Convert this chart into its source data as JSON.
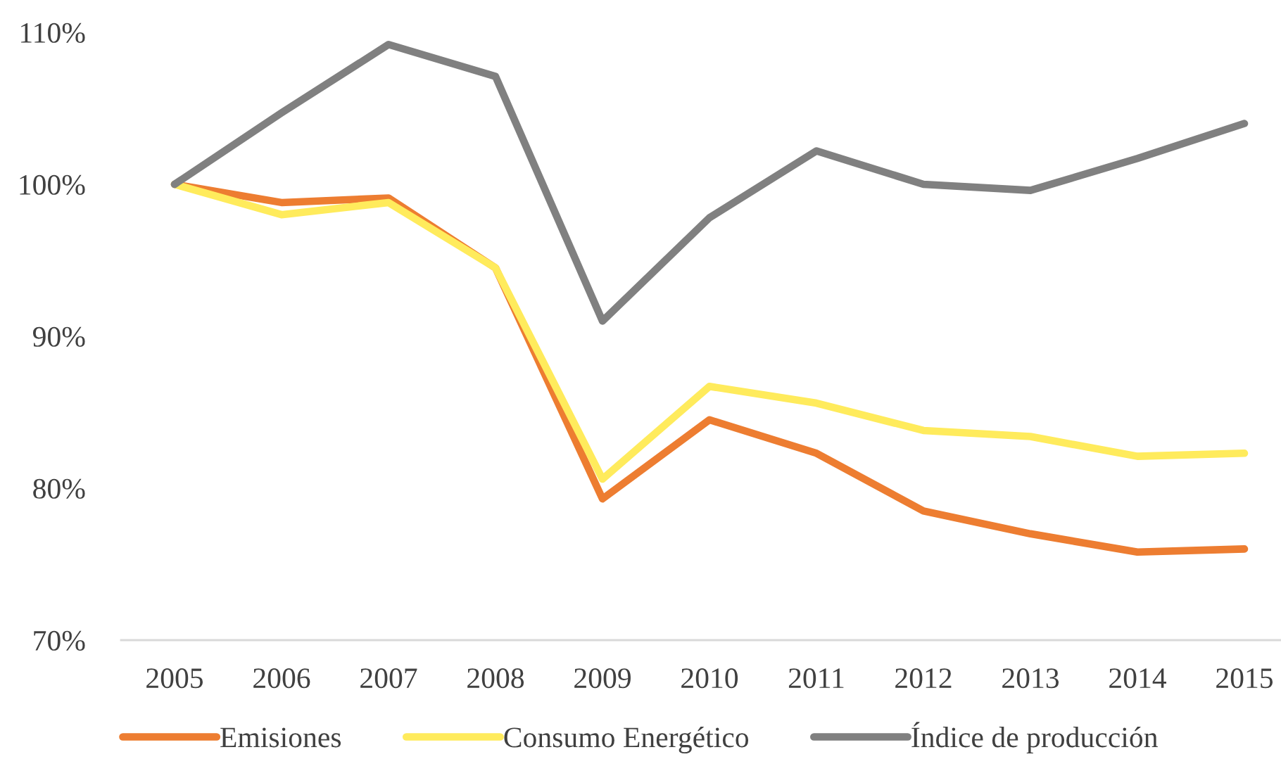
{
  "chart_data": {
    "type": "line",
    "categories": [
      "2005",
      "2006",
      "2007",
      "2008",
      "2009",
      "2010",
      "2011",
      "2012",
      "2013",
      "2014",
      "2015"
    ],
    "series": [
      {
        "name": "Emisiones",
        "color": "#ed7d31",
        "values": [
          100,
          98.8,
          99.1,
          94.5,
          79.3,
          84.5,
          82.3,
          78.5,
          77.0,
          75.8,
          76.0
        ]
      },
      {
        "name": "Consumo Energético",
        "color": "#ffeb5c",
        "values": [
          100,
          98.0,
          98.8,
          94.5,
          80.6,
          86.7,
          85.6,
          83.8,
          83.4,
          82.1,
          82.3
        ]
      },
      {
        "name": "Índice de producción",
        "color": "#808080",
        "values": [
          100,
          104.7,
          109.2,
          107.1,
          91.0,
          97.8,
          102.2,
          100.0,
          99.6,
          101.7,
          104.0
        ]
      }
    ],
    "ylim": [
      70,
      110
    ],
    "yticks": [
      {
        "value": 70,
        "label": "70%"
      },
      {
        "value": 80,
        "label": "80%"
      },
      {
        "value": 90,
        "label": "90%"
      },
      {
        "value": 100,
        "label": "100%"
      },
      {
        "value": 110,
        "label": "110%"
      }
    ],
    "grid": false,
    "legend": "bottom"
  }
}
